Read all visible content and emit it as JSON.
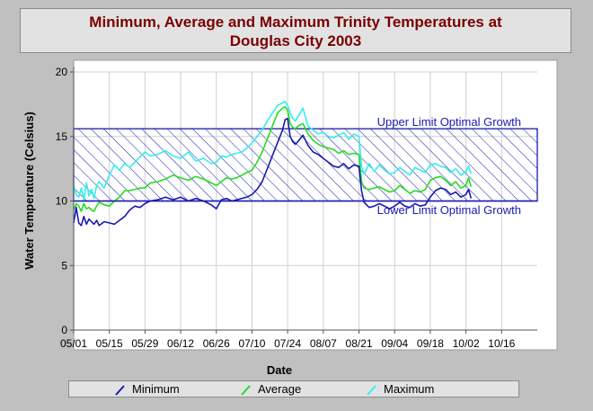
{
  "chart_data": {
    "type": "line",
    "title_line1": "Minimum, Average and Maximum Trinity Temperatures at",
    "title_line2": "Douglas City 2003",
    "xlabel": "Date",
    "ylabel": "Water Temperature (Celsius)",
    "ylim": [
      0,
      20
    ],
    "yticks": [
      "0",
      "5",
      "10",
      "15",
      "20"
    ],
    "xlim": [
      0,
      182
    ],
    "xticks": [
      {
        "label": "05/01",
        "day": 0
      },
      {
        "label": "05/15",
        "day": 14
      },
      {
        "label": "05/29",
        "day": 28
      },
      {
        "label": "06/12",
        "day": 42
      },
      {
        "label": "06/26",
        "day": 56
      },
      {
        "label": "07/10",
        "day": 70
      },
      {
        "label": "07/24",
        "day": 84
      },
      {
        "label": "08/07",
        "day": 98
      },
      {
        "label": "08/21",
        "day": 112
      },
      {
        "label": "09/04",
        "day": 126
      },
      {
        "label": "09/18",
        "day": 140
      },
      {
        "label": "10/02",
        "day": 154
      },
      {
        "label": "10/16",
        "day": 168
      }
    ],
    "grid": true,
    "optimal_range": {
      "lower": 10,
      "upper": 15.6,
      "color": "#1a1ab0"
    },
    "annotations": {
      "upper": "Upper Limit Optimal Growth",
      "lower": "Lower Limit Optimal Growth"
    },
    "series": [
      {
        "name": "Minimum",
        "color": "#1a1ab0",
        "x": [
          0,
          1,
          2,
          3,
          4,
          5,
          6,
          7,
          8,
          9,
          10,
          12,
          14,
          16,
          18,
          20,
          22,
          24,
          26,
          28,
          30,
          33,
          36,
          39,
          42,
          45,
          48,
          51,
          54,
          56,
          58,
          60,
          62,
          64,
          66,
          68,
          70,
          72,
          74,
          76,
          78,
          80,
          82,
          83,
          84,
          85,
          86,
          87,
          88,
          90,
          92,
          94,
          96,
          98,
          100,
          102,
          104,
          106,
          108,
          110,
          112,
          113,
          114,
          116,
          118,
          120,
          122,
          124,
          126,
          128,
          130,
          132,
          134,
          136,
          138,
          140,
          142,
          144,
          146,
          148,
          150,
          152,
          154,
          155,
          156
        ],
        "values": [
          8.3,
          9.5,
          8.3,
          8.1,
          8.8,
          8.2,
          8.6,
          8.4,
          8.2,
          8.5,
          8.1,
          8.4,
          8.3,
          8.2,
          8.5,
          8.8,
          9.3,
          9.6,
          9.5,
          9.8,
          10.0,
          10.1,
          10.3,
          10.1,
          10.3,
          10.0,
          10.2,
          10.0,
          9.7,
          9.4,
          10.1,
          10.2,
          10.0,
          10.1,
          10.2,
          10.3,
          10.5,
          10.9,
          11.5,
          12.5,
          13.5,
          14.5,
          15.5,
          16.3,
          16.4,
          15.0,
          14.6,
          14.4,
          14.6,
          15.1,
          14.3,
          13.8,
          13.6,
          13.3,
          13.0,
          12.7,
          12.6,
          12.9,
          12.5,
          12.8,
          12.7,
          10.8,
          9.9,
          9.5,
          9.6,
          9.8,
          9.6,
          9.4,
          9.6,
          9.9,
          9.6,
          9.5,
          9.8,
          9.6,
          9.7,
          10.3,
          10.8,
          11.0,
          10.9,
          10.5,
          10.7,
          10.3,
          10.5,
          10.9,
          10.2
        ]
      },
      {
        "name": "Average",
        "color": "#22dd22",
        "x": [
          0,
          1,
          2,
          3,
          4,
          5,
          6,
          7,
          8,
          9,
          10,
          12,
          14,
          16,
          18,
          20,
          22,
          24,
          26,
          28,
          30,
          33,
          36,
          39,
          42,
          45,
          48,
          51,
          54,
          56,
          58,
          60,
          62,
          64,
          66,
          68,
          70,
          72,
          74,
          76,
          78,
          80,
          82,
          83,
          84,
          85,
          86,
          87,
          88,
          90,
          92,
          94,
          96,
          98,
          100,
          102,
          104,
          106,
          108,
          110,
          112,
          113,
          114,
          116,
          118,
          120,
          122,
          124,
          126,
          128,
          130,
          132,
          134,
          136,
          138,
          140,
          142,
          144,
          146,
          148,
          150,
          152,
          154,
          155,
          156
        ],
        "values": [
          9.3,
          9.8,
          9.6,
          9.2,
          9.8,
          9.4,
          9.5,
          9.3,
          9.2,
          9.6,
          9.9,
          9.7,
          9.6,
          10.0,
          10.3,
          10.8,
          10.8,
          10.9,
          11.0,
          11.0,
          11.4,
          11.5,
          11.7,
          12.0,
          11.8,
          11.6,
          11.9,
          11.7,
          11.4,
          11.2,
          11.5,
          11.8,
          11.7,
          11.8,
          12.0,
          12.2,
          12.4,
          13.0,
          13.8,
          14.8,
          15.8,
          16.8,
          17.2,
          17.3,
          17.0,
          16.0,
          15.7,
          15.6,
          15.8,
          16.0,
          15.2,
          14.7,
          14.4,
          14.2,
          14.1,
          14.0,
          13.7,
          13.9,
          13.6,
          13.7,
          13.6,
          11.5,
          11.0,
          10.9,
          11.0,
          11.1,
          10.9,
          10.7,
          10.8,
          11.2,
          10.9,
          10.6,
          10.8,
          10.7,
          10.9,
          11.6,
          11.8,
          11.9,
          11.6,
          11.2,
          11.5,
          11.0,
          11.2,
          11.8,
          11.1
        ]
      },
      {
        "name": "Maximum",
        "color": "#33eeee",
        "x": [
          0,
          1,
          2,
          3,
          4,
          5,
          6,
          7,
          8,
          9,
          10,
          12,
          14,
          16,
          18,
          20,
          22,
          24,
          26,
          28,
          30,
          33,
          36,
          39,
          42,
          45,
          48,
          51,
          54,
          56,
          58,
          60,
          62,
          64,
          66,
          68,
          70,
          72,
          74,
          76,
          78,
          80,
          82,
          83,
          84,
          85,
          86,
          87,
          88,
          90,
          92,
          94,
          96,
          98,
          100,
          102,
          104,
          106,
          108,
          110,
          112,
          113,
          114,
          116,
          118,
          120,
          122,
          124,
          126,
          128,
          130,
          132,
          134,
          136,
          138,
          140,
          142,
          144,
          146,
          148,
          150,
          152,
          154,
          155,
          156
        ],
        "values": [
          11.2,
          10.5,
          10.3,
          11.0,
          10.1,
          11.4,
          10.4,
          10.9,
          10.2,
          11.2,
          11.5,
          11.0,
          12.0,
          12.8,
          12.4,
          12.9,
          12.6,
          13.0,
          13.4,
          13.8,
          13.5,
          13.6,
          13.9,
          13.5,
          13.3,
          13.8,
          13.1,
          13.3,
          12.9,
          13.0,
          13.5,
          13.4,
          13.6,
          13.7,
          13.8,
          14.1,
          14.5,
          15.0,
          15.5,
          16.2,
          16.8,
          17.4,
          17.6,
          17.7,
          17.4,
          16.8,
          16.4,
          16.2,
          16.5,
          17.2,
          15.8,
          15.5,
          15.2,
          15.3,
          15.0,
          14.9,
          15.1,
          15.3,
          14.8,
          15.2,
          15.0,
          12.7,
          12.1,
          12.9,
          12.3,
          12.8,
          12.4,
          12.1,
          12.2,
          12.6,
          12.3,
          12.0,
          12.6,
          12.4,
          12.2,
          12.8,
          12.9,
          12.7,
          12.6,
          12.2,
          12.5,
          12.0,
          12.3,
          12.7,
          12.1
        ]
      }
    ]
  }
}
